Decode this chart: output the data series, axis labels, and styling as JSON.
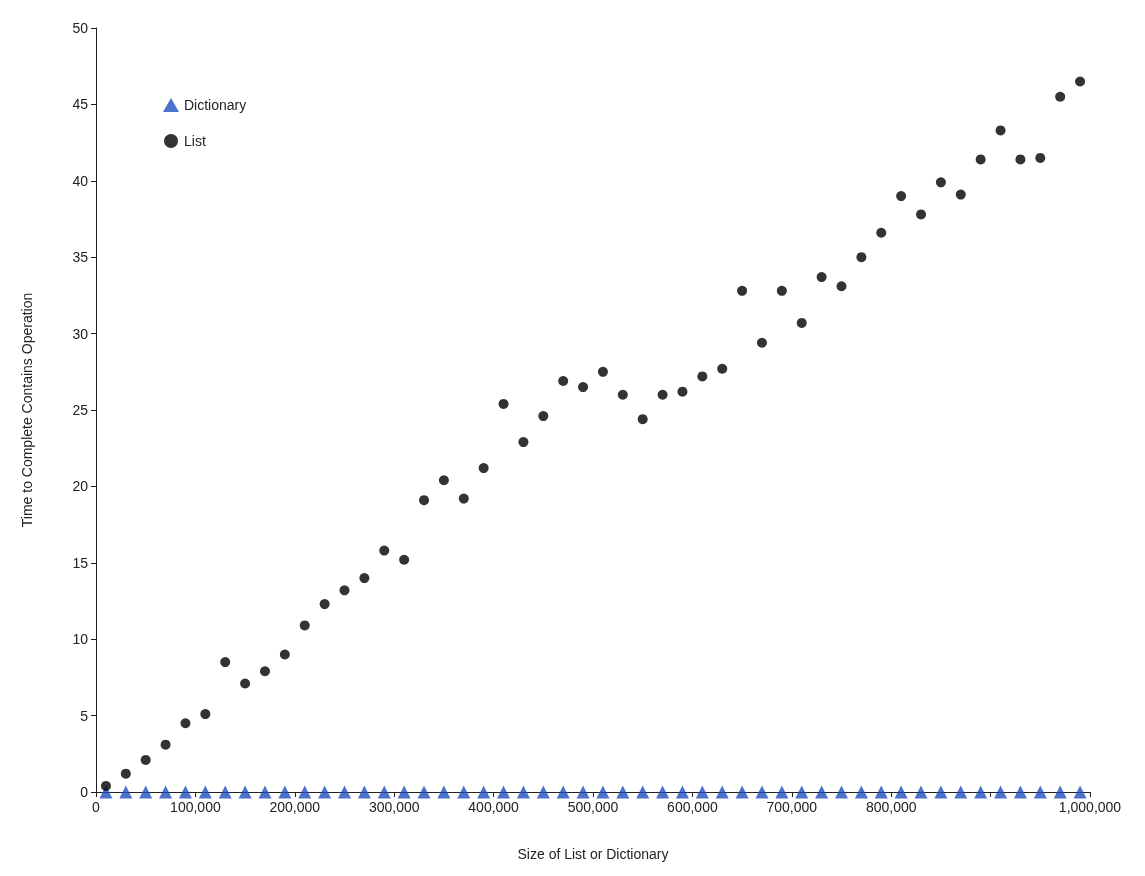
{
  "chart_data": {
    "type": "scatter",
    "xlabel": "Size of List or Dictionary",
    "ylabel": "Time to Complete Contains Operation",
    "x": [
      10000,
      30000,
      50000,
      70000,
      90000,
      110000,
      130000,
      150000,
      170000,
      190000,
      210000,
      230000,
      250000,
      270000,
      290000,
      310000,
      330000,
      350000,
      370000,
      390000,
      410000,
      430000,
      450000,
      470000,
      490000,
      510000,
      530000,
      550000,
      570000,
      590000,
      610000,
      630000,
      650000,
      670000,
      690000,
      710000,
      730000,
      750000,
      770000,
      790000,
      810000,
      830000,
      850000,
      870000,
      890000,
      910000,
      930000,
      950000,
      970000,
      990000
    ],
    "series": [
      {
        "name": "Dictionary",
        "color": "#1f4fbf",
        "marker": "triangle",
        "values": [
          0,
          0,
          0,
          0,
          0,
          0,
          0,
          0,
          0,
          0,
          0,
          0,
          0,
          0,
          0,
          0,
          0,
          0,
          0,
          0,
          0,
          0,
          0,
          0,
          0,
          0,
          0,
          0,
          0,
          0,
          0,
          0,
          0,
          0,
          0,
          0,
          0,
          0,
          0,
          0,
          0,
          0,
          0,
          0,
          0,
          0,
          0,
          0,
          0,
          0
        ]
      },
      {
        "name": "List",
        "color": "#000000",
        "marker": "circle",
        "values": [
          0.4,
          1.2,
          2.1,
          3.1,
          4.5,
          5.1,
          8.5,
          7.1,
          7.9,
          9.0,
          10.9,
          12.3,
          13.2,
          14.0,
          15.8,
          15.2,
          19.1,
          20.4,
          19.2,
          21.2,
          25.4,
          22.9,
          24.6,
          26.9,
          26.5,
          27.5,
          26.0,
          24.4,
          26.0,
          26.2,
          27.2,
          27.7,
          32.8,
          29.4,
          32.8,
          30.7,
          33.7,
          33.1,
          35.0,
          36.6,
          39.0,
          37.8,
          39.9,
          39.1,
          41.4,
          43.3,
          41.4,
          41.5,
          45.5,
          46.5
        ]
      }
    ],
    "xlim": [
      0,
      1000000
    ],
    "xticks": [
      0,
      {
        "value": 100000,
        "label": "100,000"
      },
      {
        "value": 200000,
        "label": "200,000"
      },
      {
        "value": 300000,
        "label": "300,000"
      },
      {
        "value": 400000,
        "label": "400,000"
      },
      {
        "value": 500000,
        "label": "500,000"
      },
      {
        "value": 600000,
        "label": "600,000"
      },
      {
        "value": 700000,
        "label": "700,000"
      },
      {
        "value": 800000,
        "label": "800,000"
      },
      {
        "value": 900000,
        "label": null
      },
      {
        "value": 1000000,
        "label": "1,000,000"
      }
    ],
    "ylim": [
      0,
      50
    ],
    "yticks": [
      0,
      5,
      10,
      15,
      20,
      25,
      30,
      35,
      40,
      45,
      50
    ],
    "grid": false,
    "legend": "top left"
  }
}
